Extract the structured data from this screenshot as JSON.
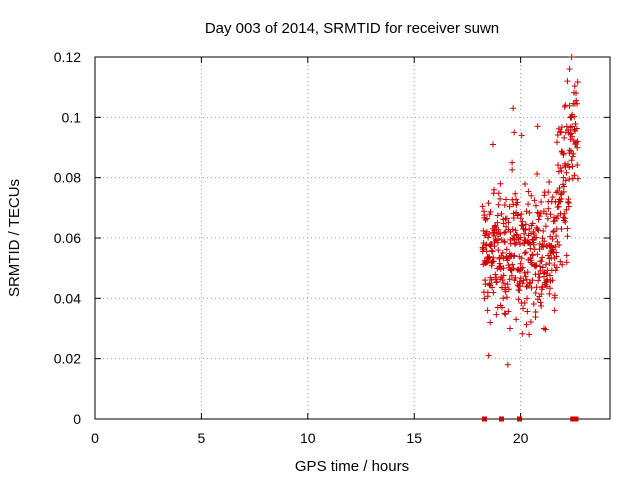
{
  "chart_data": {
    "type": "scatter",
    "title": "Day 003 of 2014, SRMTID for receiver suwn",
    "xlabel": "GPS time / hours",
    "ylabel": "SRMTID / TECUs",
    "xlim": [
      0,
      24.2
    ],
    "ylim": [
      0,
      0.12
    ],
    "xticks": [
      0,
      5,
      10,
      15,
      20
    ],
    "xtick_labels": [
      "0",
      "5",
      "10",
      "15",
      "20"
    ],
    "yticks": [
      0,
      0.02,
      0.04,
      0.06,
      0.08,
      0.1,
      0.12
    ],
    "ytick_labels": [
      "0",
      "0.02",
      "0.04",
      "0.06",
      "0.08",
      "0.1",
      "0.12"
    ],
    "grid": true,
    "marker": "plus",
    "marker_color": "#cc0000",
    "series": [
      {
        "name": "SRMTID",
        "x_range": [
          18.2,
          22.7
        ],
        "y_range": [
          0.018,
          0.12
        ],
        "approx_point_count": 520,
        "points": [
          [
            18.3,
            0.04
          ],
          [
            18.35,
            0.066
          ],
          [
            18.4,
            0.052
          ],
          [
            18.45,
            0.036
          ],
          [
            18.5,
            0.021
          ],
          [
            18.55,
            0.045
          ],
          [
            18.6,
            0.058
          ],
          [
            18.7,
            0.091
          ],
          [
            18.75,
            0.076
          ],
          [
            18.8,
            0.064
          ],
          [
            18.85,
            0.047
          ],
          [
            18.95,
            0.056
          ],
          [
            19.05,
            0.078
          ],
          [
            19.1,
            0.068
          ],
          [
            19.2,
            0.05
          ],
          [
            19.25,
            0.035
          ],
          [
            19.3,
            0.062
          ],
          [
            19.4,
            0.018
          ],
          [
            19.5,
            0.03
          ],
          [
            19.6,
            0.085
          ],
          [
            19.65,
            0.103
          ],
          [
            19.7,
            0.095
          ],
          [
            19.8,
            0.071
          ],
          [
            19.9,
            0.06
          ],
          [
            19.95,
            0.045
          ],
          [
            20.05,
            0.094
          ],
          [
            20.1,
            0.064
          ],
          [
            20.2,
            0.055
          ],
          [
            20.3,
            0.04
          ],
          [
            20.4,
            0.028
          ],
          [
            20.5,
            0.074
          ],
          [
            20.6,
            0.062
          ],
          [
            20.7,
            0.048
          ],
          [
            20.8,
            0.097
          ],
          [
            20.9,
            0.058
          ],
          [
            21.0,
            0.043
          ],
          [
            21.1,
            0.03
          ],
          [
            21.2,
            0.068
          ],
          [
            21.3,
            0.072
          ],
          [
            21.4,
            0.055
          ],
          [
            21.5,
            0.046
          ],
          [
            21.6,
            0.036
          ],
          [
            21.7,
            0.063
          ],
          [
            21.8,
            0.082
          ],
          [
            21.9,
            0.095
          ],
          [
            22.0,
            0.088
          ],
          [
            22.1,
            0.104
          ],
          [
            22.2,
            0.112
          ],
          [
            22.3,
            0.116
          ],
          [
            22.4,
            0.12
          ]
        ]
      },
      {
        "name": "zero-level markers",
        "points": [
          [
            18.3,
            0
          ],
          [
            19.1,
            0
          ],
          [
            19.95,
            0
          ],
          [
            22.45,
            0
          ],
          [
            22.6,
            0
          ]
        ]
      }
    ]
  }
}
